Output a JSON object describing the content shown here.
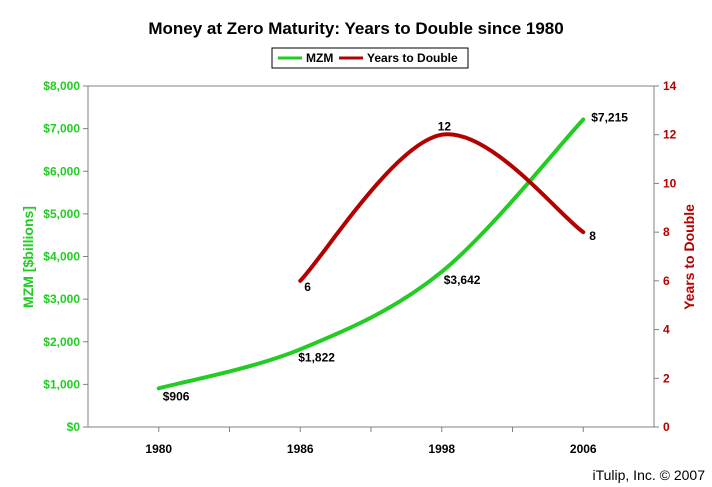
{
  "chart_data": {
    "type": "line",
    "title": "Money at Zero Maturity: Years to Double since 1980",
    "categories": [
      "1980",
      "1986",
      "1998",
      "2006"
    ],
    "y_left": {
      "label": "MZM [$billions]",
      "range": [
        0,
        8000
      ],
      "ticks": [
        "$0",
        "$1,000",
        "$2,000",
        "$3,000",
        "$4,000",
        "$5,000",
        "$6,000",
        "$7,000",
        "$8,000"
      ],
      "color": "#22cc22"
    },
    "y_right": {
      "label": "Years to Double",
      "range": [
        0,
        14
      ],
      "ticks": [
        "0",
        "2",
        "4",
        "6",
        "8",
        "10",
        "12",
        "14"
      ],
      "color": "#b30000"
    },
    "series": [
      {
        "name": "MZM",
        "axis": "left",
        "color": "#22cc22",
        "points": [
          {
            "x": 1980,
            "y": 906,
            "label": "$906"
          },
          {
            "x": 1986,
            "y": 1822,
            "label": "$1,822"
          },
          {
            "x": 1998,
            "y": 3642,
            "label": "$3,642"
          },
          {
            "x": 2006,
            "y": 7215,
            "label": "$7,215"
          }
        ]
      },
      {
        "name": "Years to Double",
        "axis": "right",
        "color": "#b30000",
        "points": [
          {
            "x": 1986,
            "y": 6,
            "label": "6"
          },
          {
            "x": 1998,
            "y": 12,
            "label": "12"
          },
          {
            "x": 2006,
            "y": 8,
            "label": "8"
          }
        ]
      }
    ],
    "legend": "top-center",
    "grid": false
  },
  "credit": "iTulip, Inc. © 2007"
}
